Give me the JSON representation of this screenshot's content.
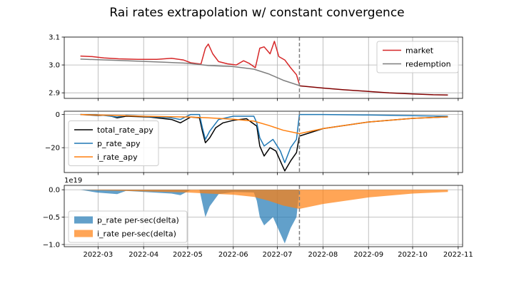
{
  "title": "Rai rates extrapolation w/ constant convergence",
  "colors": {
    "market": "#d62728",
    "redemption": "#7f7f7f",
    "total": "#000000",
    "p": "#1f77b4",
    "i": "#ff7f0e",
    "grid": "#b0b0b0",
    "vline": "#7f7f7f",
    "converged": "#800000"
  },
  "chart_data": [
    {
      "type": "line",
      "panel": "prices",
      "x_tick_labels": [
        "2022-03",
        "2022-04",
        "2022-05",
        "2022-06",
        "2022-07",
        "2022-08",
        "2022-09",
        "2022-10",
        "2022-11"
      ],
      "x_tick_dates": [
        "2022-03-01",
        "2022-04-01",
        "2022-05-01",
        "2022-06-01",
        "2022-07-01",
        "2022-08-01",
        "2022-09-01",
        "2022-10-01",
        "2022-11-01"
      ],
      "xlim": [
        "2022-02-06",
        "2022-11-04"
      ],
      "ylim": [
        2.88,
        3.1
      ],
      "yticks": [
        2.9,
        3.0,
        3.1
      ],
      "y_tick_labels": [
        "2.9",
        "3.0",
        "3.1"
      ],
      "vline": "2022-07-16",
      "legend_position": "upper right",
      "series": [
        {
          "name": "market",
          "color_key": "market",
          "points": [
            [
              "2022-02-17",
              3.032
            ],
            [
              "2022-02-25",
              3.03
            ],
            [
              "2022-03-05",
              3.025
            ],
            [
              "2022-03-15",
              3.022
            ],
            [
              "2022-03-28",
              3.02
            ],
            [
              "2022-04-10",
              3.02
            ],
            [
              "2022-04-20",
              3.024
            ],
            [
              "2022-04-28",
              3.018
            ],
            [
              "2022-05-03",
              3.008
            ],
            [
              "2022-05-07",
              3.005
            ],
            [
              "2022-05-10",
              3.003
            ],
            [
              "2022-05-13",
              3.06
            ],
            [
              "2022-05-15",
              3.075
            ],
            [
              "2022-05-18",
              3.04
            ],
            [
              "2022-05-22",
              3.012
            ],
            [
              "2022-05-28",
              3.004
            ],
            [
              "2022-06-03",
              3.0
            ],
            [
              "2022-06-08",
              3.015
            ],
            [
              "2022-06-12",
              3.005
            ],
            [
              "2022-06-16",
              2.99
            ],
            [
              "2022-06-19",
              3.06
            ],
            [
              "2022-06-22",
              3.065
            ],
            [
              "2022-06-26",
              3.04
            ],
            [
              "2022-06-29",
              3.085
            ],
            [
              "2022-07-02",
              3.03
            ],
            [
              "2022-07-06",
              3.018
            ],
            [
              "2022-07-10",
              2.99
            ],
            [
              "2022-07-14",
              2.965
            ],
            [
              "2022-07-16",
              2.93
            ]
          ]
        },
        {
          "name": "redemption",
          "color_key": "redemption",
          "points": [
            [
              "2022-02-17",
              3.021
            ],
            [
              "2022-03-15",
              3.016
            ],
            [
              "2022-04-15",
              3.01
            ],
            [
              "2022-05-01",
              3.006
            ],
            [
              "2022-05-15",
              2.998
            ],
            [
              "2022-06-01",
              2.994
            ],
            [
              "2022-06-15",
              2.985
            ],
            [
              "2022-06-25",
              2.968
            ],
            [
              "2022-07-05",
              2.945
            ],
            [
              "2022-07-16",
              2.926
            ]
          ]
        },
        {
          "name": "",
          "color_key": "converged",
          "points": [
            [
              "2022-07-16",
              2.925
            ],
            [
              "2022-08-01",
              2.917
            ],
            [
              "2022-08-15",
              2.911
            ],
            [
              "2022-09-01",
              2.905
            ],
            [
              "2022-09-15",
              2.9
            ],
            [
              "2022-10-01",
              2.896
            ],
            [
              "2022-10-15",
              2.893
            ],
            [
              "2022-10-25",
              2.892
            ]
          ]
        }
      ]
    },
    {
      "type": "line",
      "panel": "rates",
      "xlim": [
        "2022-02-06",
        "2022-11-04"
      ],
      "ylim": [
        -35,
        2
      ],
      "yticks": [
        0,
        -20
      ],
      "y_tick_labels": [
        "0",
        "−20"
      ],
      "vline": "2022-07-16",
      "legend_position": "center left",
      "series": [
        {
          "name": "total_rate_apy",
          "color_key": "total",
          "points": [
            [
              "2022-02-17",
              0
            ],
            [
              "2022-02-28",
              -0.5
            ],
            [
              "2022-03-08",
              -0.5
            ],
            [
              "2022-03-14",
              -2
            ],
            [
              "2022-03-20",
              -1
            ],
            [
              "2022-04-05",
              -1.5
            ],
            [
              "2022-04-20",
              -3
            ],
            [
              "2022-04-26",
              -5
            ],
            [
              "2022-05-03",
              -1.5
            ],
            [
              "2022-05-09",
              -2
            ],
            [
              "2022-05-11",
              -10
            ],
            [
              "2022-05-13",
              -17
            ],
            [
              "2022-05-16",
              -14
            ],
            [
              "2022-05-20",
              -8
            ],
            [
              "2022-05-25",
              -5
            ],
            [
              "2022-06-01",
              -3.5
            ],
            [
              "2022-06-10",
              -2.5
            ],
            [
              "2022-06-17",
              -7
            ],
            [
              "2022-06-19",
              -19
            ],
            [
              "2022-06-22",
              -25
            ],
            [
              "2022-06-26",
              -20
            ],
            [
              "2022-06-30",
              -22
            ],
            [
              "2022-07-04",
              -30
            ],
            [
              "2022-07-06",
              -34
            ],
            [
              "2022-07-10",
              -28
            ],
            [
              "2022-07-14",
              -23
            ],
            [
              "2022-07-16",
              -13
            ],
            [
              "2022-08-01",
              -8.5
            ],
            [
              "2022-09-01",
              -4.5
            ],
            [
              "2022-10-01",
              -2.3
            ],
            [
              "2022-10-25",
              -1.4
            ]
          ]
        },
        {
          "name": "p_rate_apy",
          "color_key": "p",
          "points": [
            [
              "2022-02-17",
              0
            ],
            [
              "2022-02-28",
              0
            ],
            [
              "2022-03-14",
              -1.5
            ],
            [
              "2022-03-20",
              -0.5
            ],
            [
              "2022-04-20",
              -2
            ],
            [
              "2022-04-26",
              -3
            ],
            [
              "2022-05-03",
              0
            ],
            [
              "2022-05-09",
              0
            ],
            [
              "2022-05-11",
              -8
            ],
            [
              "2022-05-13",
              -15
            ],
            [
              "2022-05-16",
              -10
            ],
            [
              "2022-05-22",
              -3
            ],
            [
              "2022-06-01",
              -1
            ],
            [
              "2022-06-15",
              -1
            ],
            [
              "2022-06-17",
              -5
            ],
            [
              "2022-06-19",
              -14
            ],
            [
              "2022-06-22",
              -19
            ],
            [
              "2022-06-28",
              -15
            ],
            [
              "2022-07-03",
              -22
            ],
            [
              "2022-07-06",
              -29
            ],
            [
              "2022-07-10",
              -20
            ],
            [
              "2022-07-14",
              -15
            ],
            [
              "2022-07-16",
              0
            ],
            [
              "2022-08-01",
              0
            ],
            [
              "2022-09-01",
              -0.3
            ],
            [
              "2022-10-01",
              -0.7
            ],
            [
              "2022-10-25",
              -1
            ]
          ]
        },
        {
          "name": "i_rate_apy",
          "color_key": "i",
          "points": [
            [
              "2022-02-17",
              0
            ],
            [
              "2022-03-01",
              -0.3
            ],
            [
              "2022-04-01",
              -1
            ],
            [
              "2022-05-01",
              -1.5
            ],
            [
              "2022-05-15",
              -2
            ],
            [
              "2022-06-01",
              -2.8
            ],
            [
              "2022-06-15",
              -4
            ],
            [
              "2022-06-25",
              -6.5
            ],
            [
              "2022-07-05",
              -9.5
            ],
            [
              "2022-07-16",
              -11.5
            ],
            [
              "2022-08-01",
              -8.5
            ],
            [
              "2022-09-01",
              -4.5
            ],
            [
              "2022-10-01",
              -2.3
            ],
            [
              "2022-10-25",
              -1.4
            ]
          ]
        }
      ]
    },
    {
      "type": "area",
      "panel": "per-second deltas",
      "xlim": [
        "2022-02-06",
        "2022-11-04"
      ],
      "ylim": [
        -1.04,
        0.08
      ],
      "yticks": [
        0,
        -0.5,
        -1.0
      ],
      "y_tick_labels": [
        "0.0",
        "−0.5",
        "−1.0"
      ],
      "offset_label": "1e19",
      "vline": "2022-07-16",
      "legend_position": "lower left",
      "series": [
        {
          "name": "p_rate per-sec(delta)",
          "color_key": "p",
          "points": [
            [
              "2022-02-17",
              0
            ],
            [
              "2022-02-28",
              -0.05
            ],
            [
              "2022-03-14",
              -0.08
            ],
            [
              "2022-03-20",
              -0.02
            ],
            [
              "2022-04-20",
              -0.07
            ],
            [
              "2022-04-26",
              -0.1
            ],
            [
              "2022-05-03",
              0
            ],
            [
              "2022-05-09",
              0
            ],
            [
              "2022-05-11",
              -0.25
            ],
            [
              "2022-05-13",
              -0.5
            ],
            [
              "2022-05-16",
              -0.3
            ],
            [
              "2022-05-22",
              -0.08
            ],
            [
              "2022-06-01",
              -0.04
            ],
            [
              "2022-06-15",
              -0.05
            ],
            [
              "2022-06-17",
              -0.2
            ],
            [
              "2022-06-19",
              -0.5
            ],
            [
              "2022-06-22",
              -0.65
            ],
            [
              "2022-06-28",
              -0.5
            ],
            [
              "2022-07-03",
              -0.8
            ],
            [
              "2022-07-06",
              -0.98
            ],
            [
              "2022-07-10",
              -0.7
            ],
            [
              "2022-07-14",
              -0.5
            ],
            [
              "2022-07-16",
              0
            ],
            [
              "2022-10-25",
              0
            ]
          ]
        },
        {
          "name": "i_rate per-sec(delta)",
          "color_key": "i",
          "points": [
            [
              "2022-02-17",
              0
            ],
            [
              "2022-03-01",
              -0.01
            ],
            [
              "2022-04-01",
              -0.03
            ],
            [
              "2022-05-01",
              -0.05
            ],
            [
              "2022-05-15",
              -0.07
            ],
            [
              "2022-06-01",
              -0.09
            ],
            [
              "2022-06-15",
              -0.13
            ],
            [
              "2022-06-25",
              -0.2
            ],
            [
              "2022-07-05",
              -0.29
            ],
            [
              "2022-07-16",
              -0.35
            ],
            [
              "2022-08-01",
              -0.26
            ],
            [
              "2022-09-01",
              -0.14
            ],
            [
              "2022-10-01",
              -0.07
            ],
            [
              "2022-10-25",
              -0.04
            ]
          ]
        }
      ]
    }
  ]
}
